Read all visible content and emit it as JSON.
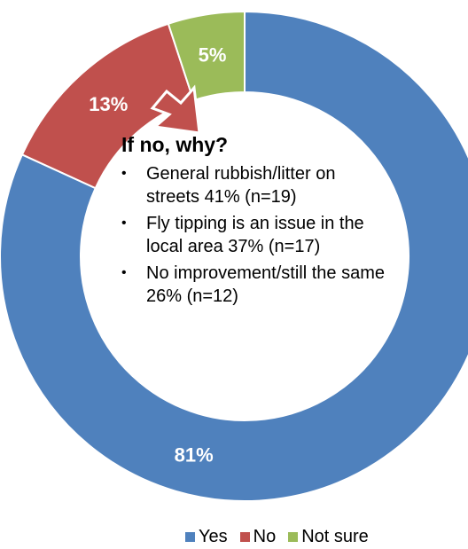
{
  "chart_data": {
    "type": "pie",
    "categories": [
      "Yes",
      "No",
      "Not sure"
    ],
    "values": [
      81,
      13,
      5
    ],
    "labels": [
      "81%",
      "13%",
      "5%"
    ],
    "colors": [
      "#4F81BD",
      "#C0504D",
      "#9BBB59"
    ],
    "donut": true,
    "legend": "bottom",
    "callout": {
      "title": "If no, why?",
      "items": [
        "General rubbish/litter on streets 41% (n=19)",
        "Fly tipping is an issue in the local area 37% (n=17)",
        "No improvement/still the same 26% (n=12)"
      ]
    }
  }
}
